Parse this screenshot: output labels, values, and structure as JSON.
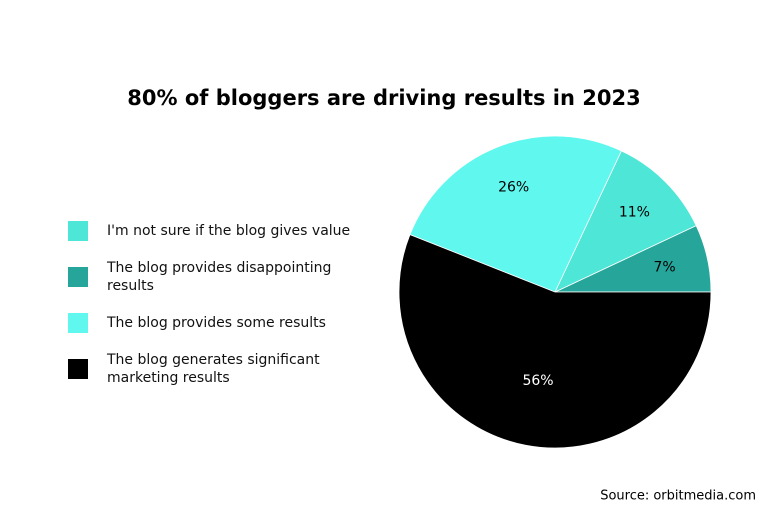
{
  "chart_data": {
    "type": "pie",
    "title": "80% of bloggers are driving results in 2023",
    "categories": [
      "I'm not sure if the blog gives value",
      "The blog provides disappointing results",
      "The blog provides some results",
      "The blog generates significant marketing results"
    ],
    "values": [
      11,
      7,
      26,
      56
    ],
    "value_labels": [
      "11%",
      "7%",
      "26%",
      "56%"
    ],
    "colors": [
      "#4ee6d6",
      "#26a69a",
      "#5ff7ee",
      "#000000"
    ],
    "source": "Source: orbitmedia.com"
  }
}
